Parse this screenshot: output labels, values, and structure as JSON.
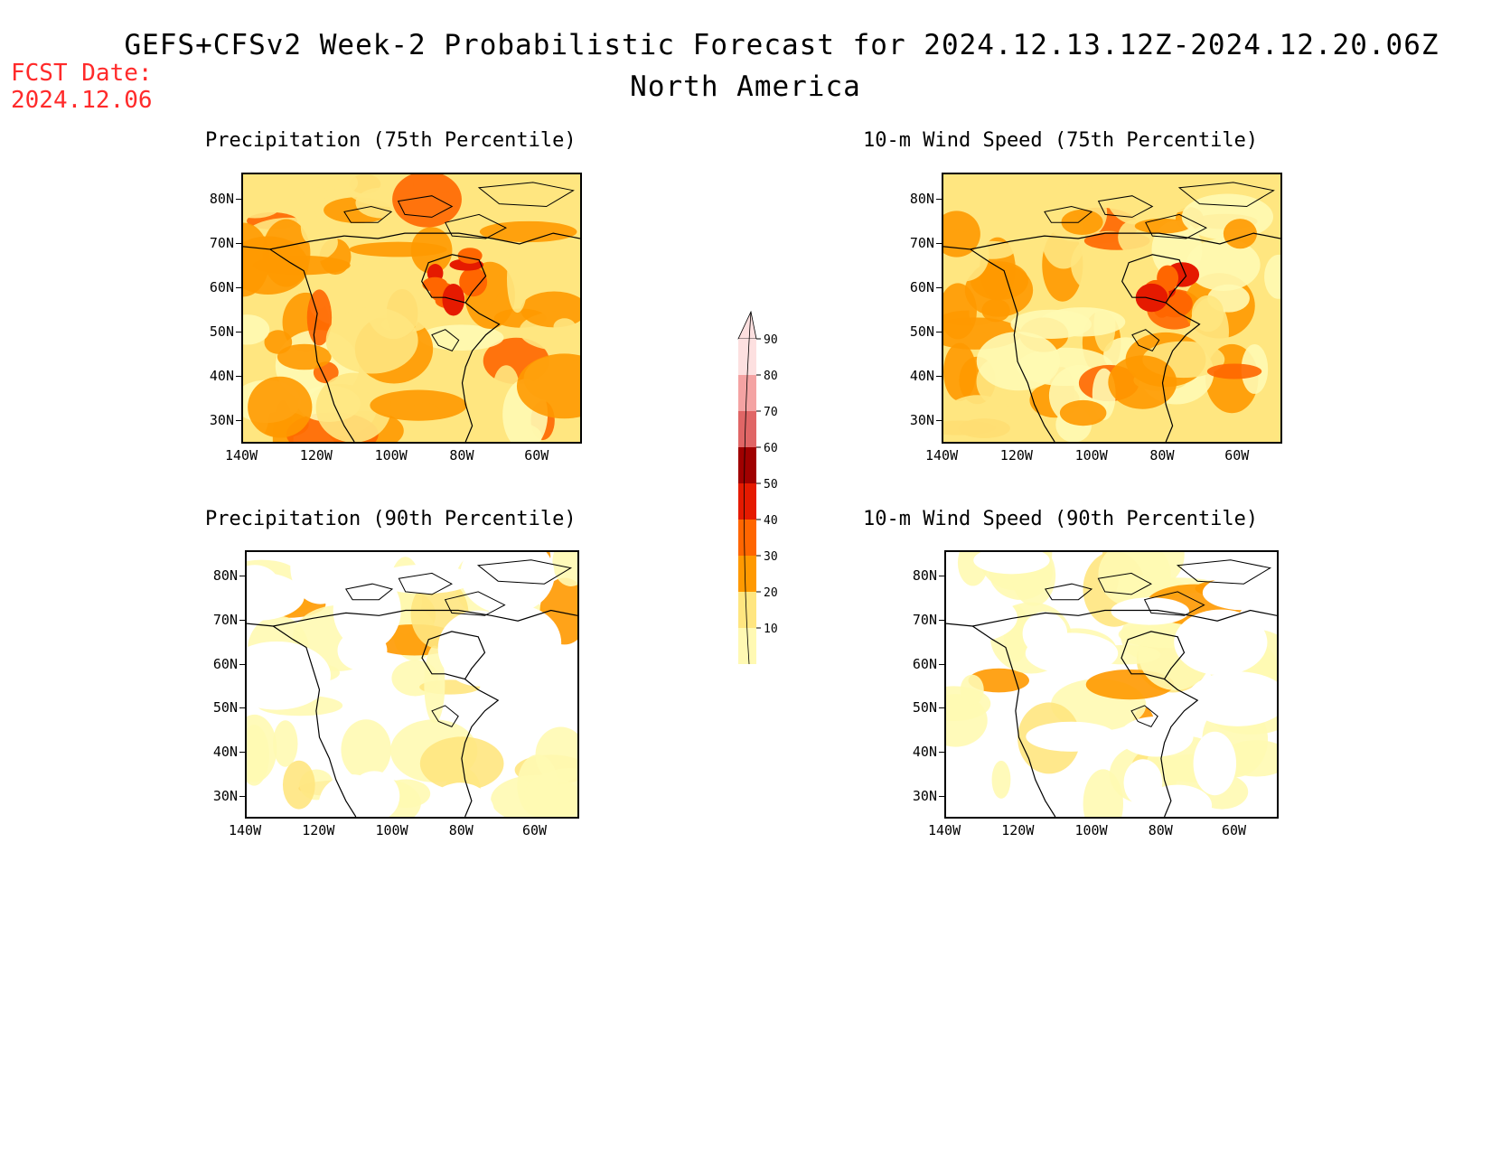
{
  "header": {
    "title": "GEFS+CFSv2 Week-2 Probabilistic Forecast for 2024.12.13.12Z-2024.12.20.06Z",
    "subtitle": "North America",
    "fcst_label": "FCST Date:",
    "fcst_date": "2024.12.06"
  },
  "panels": [
    {
      "id": "precip75",
      "title": "Precipitation (75th Percentile)",
      "intensity": "high"
    },
    {
      "id": "wind75",
      "title": "10-m Wind Speed (75th Percentile)",
      "intensity": "high"
    },
    {
      "id": "precip90",
      "title": "Precipitation (90th Percentile)",
      "intensity": "low"
    },
    {
      "id": "wind90",
      "title": "10-m Wind Speed (90th Percentile)",
      "intensity": "low"
    }
  ],
  "axes": {
    "lat_labels": [
      "80N",
      "70N",
      "60N",
      "50N",
      "40N",
      "30N"
    ],
    "lon_labels": [
      "140W",
      "120W",
      "100W",
      "80W",
      "60W"
    ]
  },
  "colorbar": {
    "levels": [
      "90",
      "80",
      "70",
      "60",
      "50",
      "40",
      "30",
      "20",
      "10"
    ],
    "colors": [
      "#fde0e0",
      "#f4a3a3",
      "#e06666",
      "#a00000",
      "#e51a00",
      "#ff6600",
      "#ff9900",
      "#ffe680",
      "#fff9b3"
    ]
  }
}
